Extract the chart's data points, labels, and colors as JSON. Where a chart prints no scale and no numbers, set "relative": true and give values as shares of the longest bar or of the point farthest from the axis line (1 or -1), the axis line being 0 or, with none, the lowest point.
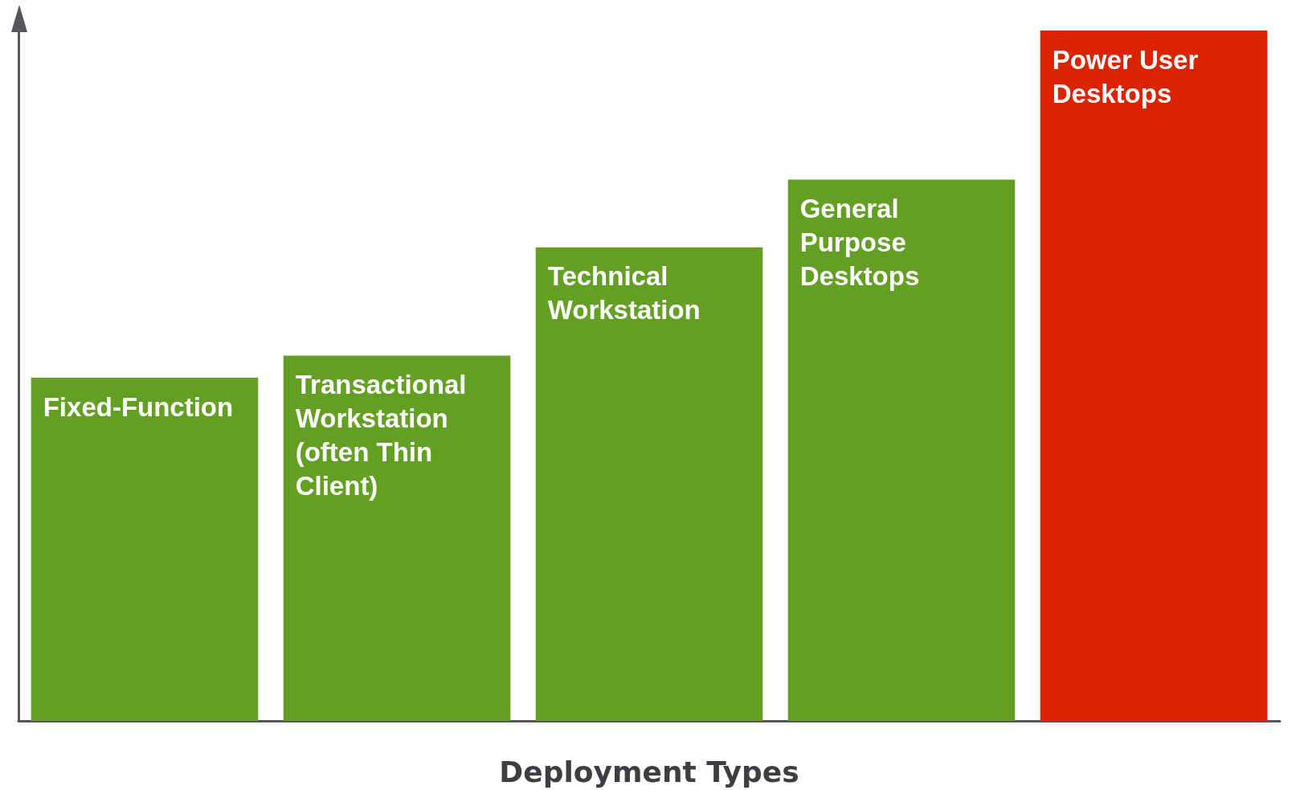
{
  "chart_data": {
    "type": "bar",
    "relative": true,
    "xlabel": "Deployment Types",
    "categories": [
      "Fixed-Function",
      "Transactional Workstation (often Thin Client)",
      "Technical Workstation",
      "General Purpose Desktops",
      "Power User Desktops"
    ],
    "values": [
      0.497,
      0.529,
      0.686,
      0.784,
      1
    ],
    "colors": [
      "#639f22",
      "#639f22",
      "#639f22",
      "#639f22",
      "#dc2300"
    ],
    "grid": false
  }
}
